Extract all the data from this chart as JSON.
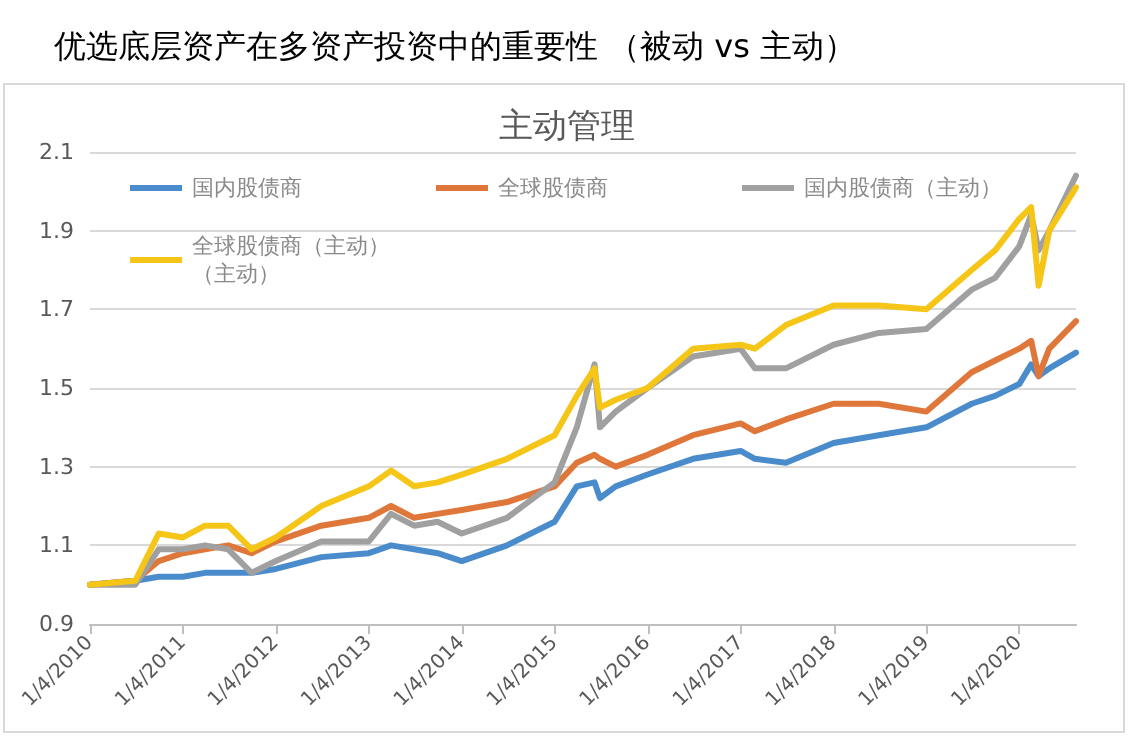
{
  "chart_data": {
    "type": "line",
    "title": "优选底层资产在多资产投资中的重要性 （被动 vs 主动）",
    "subtitle": "主动管理",
    "x": [
      "2010-01-04",
      "2010-07-01",
      "2010-10-01",
      "2011-01-04",
      "2011-04-01",
      "2011-07-01",
      "2011-10-01",
      "2012-01-04",
      "2012-07-01",
      "2013-01-04",
      "2013-04-01",
      "2013-07-01",
      "2013-10-01",
      "2014-01-04",
      "2014-07-01",
      "2015-01-04",
      "2015-04-01",
      "2015-06-10",
      "2015-07-01",
      "2015-09-01",
      "2016-01-04",
      "2016-07-01",
      "2017-01-04",
      "2017-03-01",
      "2017-07-01",
      "2018-01-04",
      "2018-07-01",
      "2019-01-04",
      "2019-07-01",
      "2019-10-01",
      "2020-01-04",
      "2020-02-20",
      "2020-03-20",
      "2020-05-01",
      "2020-08-14"
    ],
    "series": [
      {
        "name": "国内股债商",
        "color": "#4a8ccb",
        "values": [
          1.0,
          1.01,
          1.02,
          1.02,
          1.03,
          1.03,
          1.03,
          1.04,
          1.07,
          1.08,
          1.1,
          1.09,
          1.08,
          1.06,
          1.1,
          1.16,
          1.25,
          1.26,
          1.22,
          1.25,
          1.28,
          1.32,
          1.34,
          1.32,
          1.31,
          1.36,
          1.38,
          1.4,
          1.46,
          1.48,
          1.51,
          1.56,
          1.53,
          1.55,
          1.59
        ]
      },
      {
        "name": "全球股债商",
        "color": "#e0773a",
        "values": [
          1.0,
          1.01,
          1.06,
          1.08,
          1.09,
          1.1,
          1.08,
          1.11,
          1.15,
          1.17,
          1.2,
          1.17,
          1.18,
          1.19,
          1.21,
          1.25,
          1.31,
          1.33,
          1.32,
          1.3,
          1.33,
          1.38,
          1.41,
          1.39,
          1.42,
          1.46,
          1.46,
          1.44,
          1.54,
          1.57,
          1.6,
          1.62,
          1.53,
          1.6,
          1.67
        ]
      },
      {
        "name": "国内股债商（主动）",
        "color": "#a0a0a0",
        "values": [
          1.0,
          1.0,
          1.09,
          1.09,
          1.1,
          1.09,
          1.03,
          1.06,
          1.11,
          1.11,
          1.18,
          1.15,
          1.16,
          1.13,
          1.17,
          1.26,
          1.4,
          1.56,
          1.4,
          1.44,
          1.5,
          1.58,
          1.6,
          1.55,
          1.55,
          1.61,
          1.64,
          1.65,
          1.75,
          1.78,
          1.86,
          1.94,
          1.85,
          1.9,
          2.04
        ]
      },
      {
        "name": "全球股债商（主动）（主动）",
        "color": "#f5c518",
        "values": [
          1.0,
          1.01,
          1.13,
          1.12,
          1.15,
          1.15,
          1.09,
          1.12,
          1.2,
          1.25,
          1.29,
          1.25,
          1.26,
          1.28,
          1.32,
          1.38,
          1.48,
          1.55,
          1.45,
          1.47,
          1.5,
          1.6,
          1.61,
          1.6,
          1.66,
          1.71,
          1.71,
          1.7,
          1.8,
          1.85,
          1.93,
          1.96,
          1.76,
          1.9,
          2.01
        ]
      }
    ],
    "xlim": [
      "2010-01-04",
      "2020-08-14"
    ],
    "xticks": [
      {
        "value": "2010-01-04",
        "label": "1/4/2010"
      },
      {
        "value": "2011-01-04",
        "label": "1/4/2011"
      },
      {
        "value": "2012-01-04",
        "label": "1/4/2012"
      },
      {
        "value": "2013-01-04",
        "label": "1/4/2013"
      },
      {
        "value": "2014-01-04",
        "label": "1/4/2014"
      },
      {
        "value": "2015-01-04",
        "label": "1/4/2015"
      },
      {
        "value": "2016-01-04",
        "label": "1/4/2016"
      },
      {
        "value": "2017-01-04",
        "label": "1/4/2017"
      },
      {
        "value": "2018-01-04",
        "label": "1/4/2018"
      },
      {
        "value": "2019-01-04",
        "label": "1/4/2019"
      },
      {
        "value": "2020-01-04",
        "label": "1/4/2020"
      }
    ],
    "ylim": [
      0.9,
      2.1
    ],
    "yticks": [
      0.9,
      1.1,
      1.3,
      1.5,
      1.7,
      1.9,
      2.1
    ],
    "grid": "y",
    "legend": "top",
    "marker": "none",
    "line_style": "solid"
  }
}
